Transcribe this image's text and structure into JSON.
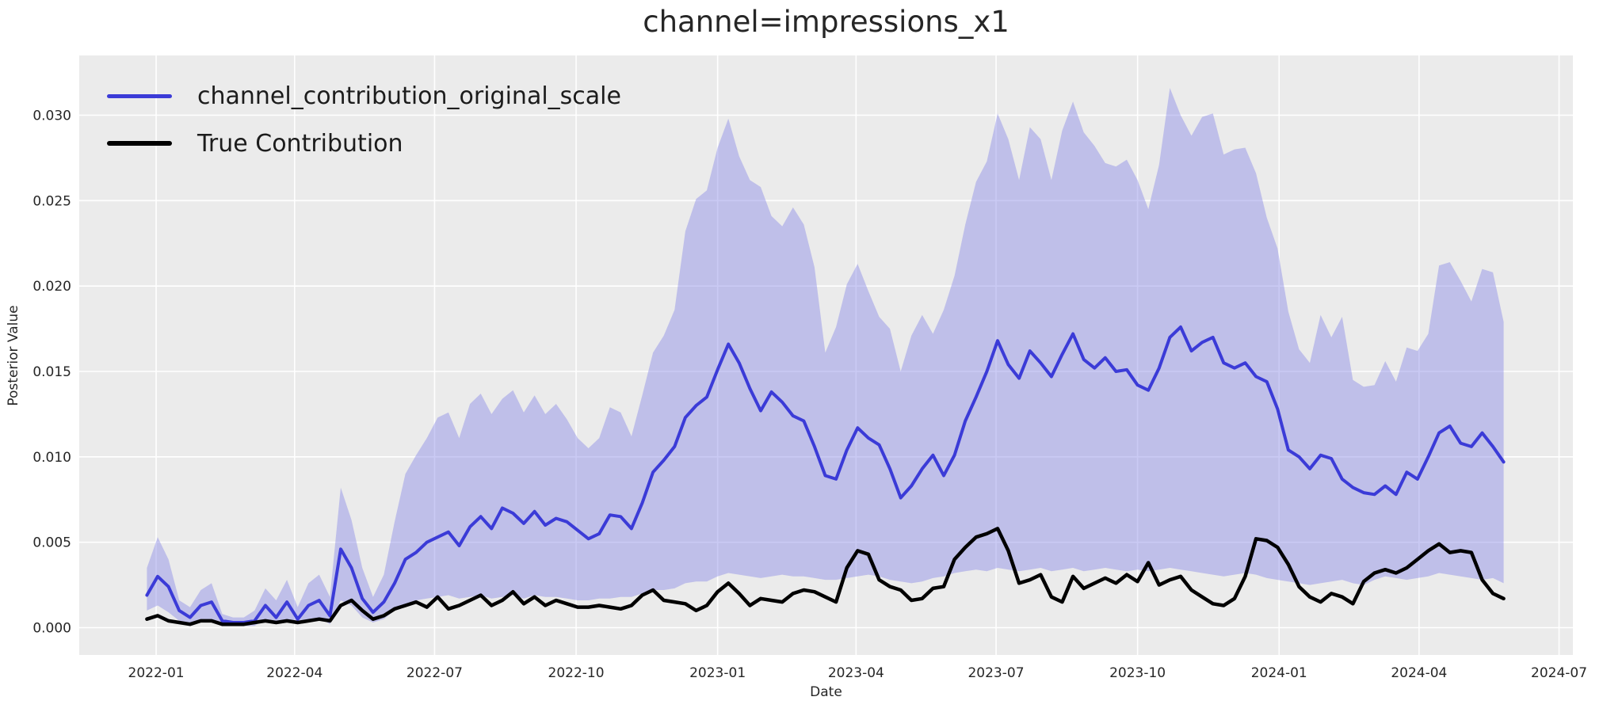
{
  "chart_data": {
    "type": "line",
    "title": "channel=impressions_x1",
    "xlabel": "Date",
    "ylabel": "Posterior Value",
    "grid": true,
    "plot_background": "#ebebeb",
    "grid_color": "#ffffff",
    "text_color": "#262626",
    "legend_position": "upper left",
    "ylim": [
      -0.0016,
      0.0335
    ],
    "y_ticks": [
      {
        "label": "0.000",
        "value": 0.0
      },
      {
        "label": "0.005",
        "value": 0.005
      },
      {
        "label": "0.010",
        "value": 0.01
      },
      {
        "label": "0.015",
        "value": 0.015
      },
      {
        "label": "0.020",
        "value": 0.02
      },
      {
        "label": "0.025",
        "value": 0.025
      },
      {
        "label": "0.030",
        "value": 0.03
      }
    ],
    "x_ticks": [
      {
        "label": "2022-01",
        "day": 6
      },
      {
        "label": "2022-04",
        "day": 96
      },
      {
        "label": "2022-07",
        "day": 187
      },
      {
        "label": "2022-10",
        "day": 279
      },
      {
        "label": "2023-01",
        "day": 371
      },
      {
        "label": "2023-04",
        "day": 461
      },
      {
        "label": "2023-07",
        "day": 552
      },
      {
        "label": "2023-10",
        "day": 644
      },
      {
        "label": "2024-01",
        "day": 736
      },
      {
        "label": "2024-04",
        "day": 827
      },
      {
        "label": "2024-07",
        "day": 918
      }
    ],
    "x_day_span": [
      0,
      882
    ],
    "xlim_days": [
      -44,
      927
    ],
    "points_per_series": 127,
    "sampling": "weekly",
    "series": [
      {
        "name": "channel_contribution_original_scale",
        "type": "line",
        "color": "#3b3bd7",
        "values": [
          0.0019,
          0.003,
          0.0024,
          0.001,
          0.0006,
          0.0013,
          0.0015,
          0.0004,
          0.0003,
          0.0003,
          0.0004,
          0.0013,
          0.0006,
          0.0015,
          0.0005,
          0.0013,
          0.0016,
          0.0007,
          0.0046,
          0.0035,
          0.0017,
          0.0009,
          0.0015,
          0.0026,
          0.004,
          0.0044,
          0.005,
          0.0053,
          0.0056,
          0.0048,
          0.0059,
          0.0065,
          0.0058,
          0.007,
          0.0067,
          0.0061,
          0.0068,
          0.006,
          0.0064,
          0.0062,
          0.0057,
          0.0052,
          0.0055,
          0.0066,
          0.0065,
          0.0058,
          0.0073,
          0.0091,
          0.0098,
          0.0106,
          0.0123,
          0.013,
          0.0135,
          0.0151,
          0.0166,
          0.0155,
          0.014,
          0.0127,
          0.0138,
          0.0132,
          0.0124,
          0.0121,
          0.0106,
          0.0089,
          0.0087,
          0.0104,
          0.0117,
          0.0111,
          0.0107,
          0.0093,
          0.0076,
          0.0083,
          0.0093,
          0.0101,
          0.0089,
          0.0101,
          0.0121,
          0.0135,
          0.015,
          0.0168,
          0.0154,
          0.0146,
          0.0162,
          0.0155,
          0.0147,
          0.016,
          0.0172,
          0.0157,
          0.0152,
          0.0158,
          0.015,
          0.0151,
          0.0142,
          0.0139,
          0.0152,
          0.017,
          0.0176,
          0.0162,
          0.0167,
          0.017,
          0.0155,
          0.0152,
          0.0155,
          0.0147,
          0.0144,
          0.0128,
          0.0104,
          0.01,
          0.0093,
          0.0101,
          0.0099,
          0.0087,
          0.0082,
          0.0079,
          0.0078,
          0.0083,
          0.0078,
          0.0091,
          0.0087,
          0.01,
          0.0114,
          0.0118,
          0.0108,
          0.0106,
          0.0114,
          0.0106,
          0.0097
        ]
      },
      {
        "name": "True Contribution",
        "type": "line",
        "color": "#000000",
        "values": [
          0.0005,
          0.0007,
          0.0004,
          0.0003,
          0.0002,
          0.0004,
          0.0004,
          0.0002,
          0.0002,
          0.0002,
          0.0003,
          0.0004,
          0.0003,
          0.0004,
          0.0003,
          0.0004,
          0.0005,
          0.0004,
          0.0013,
          0.0016,
          0.001,
          0.0005,
          0.0007,
          0.0011,
          0.0013,
          0.0015,
          0.0012,
          0.0018,
          0.0011,
          0.0013,
          0.0016,
          0.0019,
          0.0013,
          0.0016,
          0.0021,
          0.0014,
          0.0018,
          0.0013,
          0.0016,
          0.0014,
          0.0012,
          0.0012,
          0.0013,
          0.0012,
          0.0011,
          0.0013,
          0.0019,
          0.0022,
          0.0016,
          0.0015,
          0.0014,
          0.001,
          0.0013,
          0.0021,
          0.0026,
          0.002,
          0.0013,
          0.0017,
          0.0016,
          0.0015,
          0.002,
          0.0022,
          0.0021,
          0.0018,
          0.0015,
          0.0035,
          0.0045,
          0.0043,
          0.0028,
          0.0024,
          0.0022,
          0.0016,
          0.0017,
          0.0023,
          0.0024,
          0.004,
          0.0047,
          0.0053,
          0.0055,
          0.0058,
          0.0045,
          0.0026,
          0.0028,
          0.0031,
          0.0018,
          0.0015,
          0.003,
          0.0023,
          0.0026,
          0.0029,
          0.0026,
          0.0031,
          0.0027,
          0.0038,
          0.0025,
          0.0028,
          0.003,
          0.0022,
          0.0018,
          0.0014,
          0.0013,
          0.0017,
          0.003,
          0.0052,
          0.0051,
          0.0047,
          0.0037,
          0.0024,
          0.0018,
          0.0015,
          0.002,
          0.0018,
          0.0014,
          0.0027,
          0.0032,
          0.0034,
          0.0032,
          0.0035,
          0.004,
          0.0045,
          0.0049,
          0.0044,
          0.0045,
          0.0044,
          0.0028,
          0.002,
          0.0017
        ]
      },
      {
        "name": "uncertainty_band",
        "type": "band",
        "fill_color": "#8989e6",
        "fill_opacity": 0.45,
        "upper": [
          0.0035,
          0.0053,
          0.004,
          0.0016,
          0.0012,
          0.0022,
          0.0026,
          0.0008,
          0.0006,
          0.0006,
          0.001,
          0.0023,
          0.0016,
          0.0028,
          0.0012,
          0.0026,
          0.0031,
          0.0018,
          0.0082,
          0.0063,
          0.0035,
          0.0018,
          0.0031,
          0.0062,
          0.009,
          0.0101,
          0.0111,
          0.0123,
          0.0126,
          0.0111,
          0.0131,
          0.0137,
          0.0125,
          0.0134,
          0.0139,
          0.0126,
          0.0136,
          0.0125,
          0.0131,
          0.0122,
          0.0111,
          0.0105,
          0.0111,
          0.0129,
          0.0126,
          0.0112,
          0.0136,
          0.0161,
          0.0171,
          0.0186,
          0.0232,
          0.0251,
          0.0256,
          0.0281,
          0.0298,
          0.0276,
          0.0262,
          0.0258,
          0.0241,
          0.0235,
          0.0246,
          0.0236,
          0.0211,
          0.0161,
          0.0176,
          0.0201,
          0.0213,
          0.0197,
          0.0182,
          0.0175,
          0.015,
          0.0171,
          0.0183,
          0.0172,
          0.0186,
          0.0206,
          0.0236,
          0.0261,
          0.0273,
          0.0301,
          0.0286,
          0.0262,
          0.0293,
          0.0286,
          0.0262,
          0.0291,
          0.0308,
          0.029,
          0.0282,
          0.0272,
          0.027,
          0.0274,
          0.0262,
          0.0245,
          0.0271,
          0.0316,
          0.03,
          0.0288,
          0.0299,
          0.0301,
          0.0277,
          0.028,
          0.0281,
          0.0266,
          0.024,
          0.0222,
          0.0185,
          0.0163,
          0.0155,
          0.0183,
          0.017,
          0.0182,
          0.0145,
          0.0141,
          0.0142,
          0.0156,
          0.0144,
          0.0164,
          0.0162,
          0.0172,
          0.0212,
          0.0214,
          0.0203,
          0.0191,
          0.021,
          0.0208,
          0.0179
        ],
        "lower": [
          0.001,
          0.0013,
          0.0009,
          0.0004,
          0.0002,
          0.0005,
          0.0005,
          0.0001,
          0.0001,
          0.0001,
          0.0001,
          0.0005,
          0.0002,
          0.0005,
          0.0002,
          0.0005,
          0.0006,
          0.0002,
          0.0016,
          0.0013,
          0.0006,
          0.0003,
          0.0005,
          0.001,
          0.0014,
          0.0016,
          0.0017,
          0.0018,
          0.0019,
          0.0017,
          0.0018,
          0.0019,
          0.0017,
          0.0018,
          0.0019,
          0.0017,
          0.0019,
          0.0018,
          0.0018,
          0.0017,
          0.0016,
          0.0016,
          0.0017,
          0.0017,
          0.0018,
          0.0018,
          0.002,
          0.0022,
          0.0022,
          0.0023,
          0.0026,
          0.0027,
          0.0027,
          0.003,
          0.0032,
          0.0031,
          0.003,
          0.0029,
          0.003,
          0.0031,
          0.003,
          0.003,
          0.0029,
          0.0028,
          0.0028,
          0.0029,
          0.003,
          0.0031,
          0.003,
          0.0028,
          0.0027,
          0.0026,
          0.0027,
          0.0029,
          0.003,
          0.0032,
          0.0033,
          0.0034,
          0.0033,
          0.0035,
          0.0034,
          0.0033,
          0.0034,
          0.0035,
          0.0033,
          0.0034,
          0.0035,
          0.0033,
          0.0034,
          0.0035,
          0.0034,
          0.0033,
          0.0034,
          0.0033,
          0.0034,
          0.0035,
          0.0034,
          0.0033,
          0.0032,
          0.0031,
          0.003,
          0.0031,
          0.0032,
          0.0031,
          0.0029,
          0.0028,
          0.0027,
          0.0026,
          0.0025,
          0.0026,
          0.0027,
          0.0028,
          0.0026,
          0.0025,
          0.0028,
          0.003,
          0.0029,
          0.0028,
          0.0029,
          0.003,
          0.0032,
          0.0031,
          0.003,
          0.0029,
          0.0028,
          0.0029,
          0.0026
        ]
      }
    ]
  }
}
